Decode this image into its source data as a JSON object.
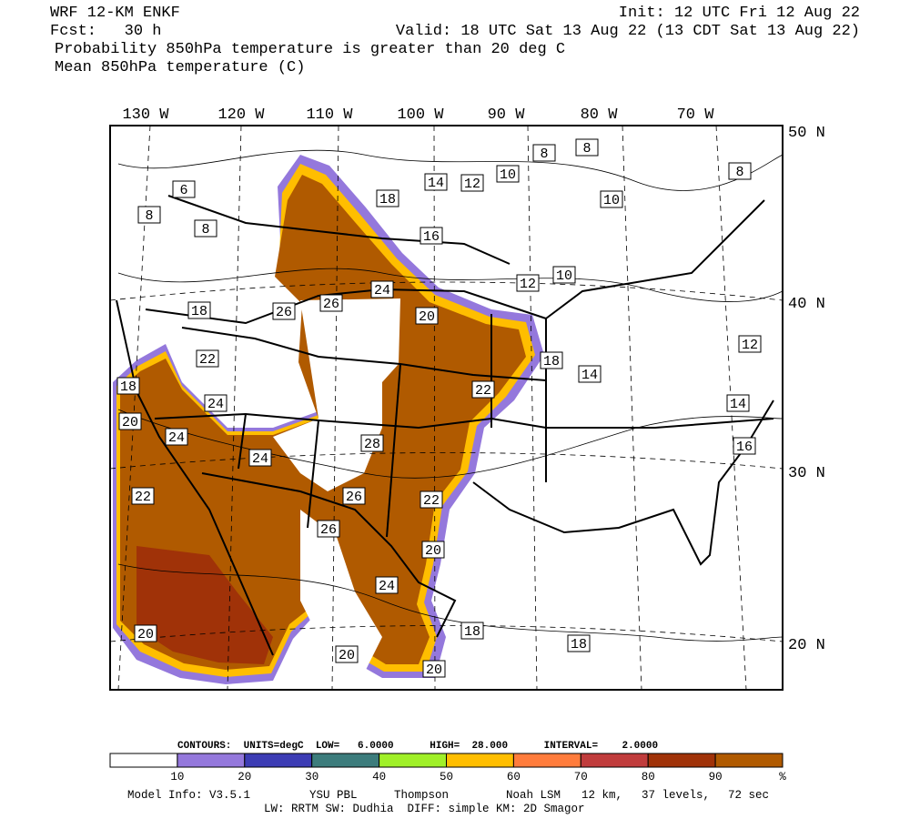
{
  "header": {
    "model": "WRF 12-KM ENKF",
    "forecast": "Fcst:   30 h",
    "init": "Init: 12 UTC Fri 12 Aug 22",
    "valid": "Valid: 18 UTC Sat 13 Aug 22 (13 CDT Sat 13 Aug 22)",
    "field1": "Probability 850hPa temperature is greater than 20 deg C",
    "field2": "Mean 850hPa temperature (C)"
  },
  "longitude_labels": [
    "130 W",
    "120 W",
    "110 W",
    "100 W",
    "90 W",
    "80 W",
    "70 W"
  ],
  "latitude_labels": [
    "50 N",
    "40 N",
    "30 N",
    "20 N"
  ],
  "contour_labels": [
    8,
    8,
    10,
    12,
    14,
    10,
    8,
    6,
    8,
    8,
    18,
    16,
    12,
    10,
    24,
    26,
    26,
    18,
    20,
    22,
    18,
    14,
    12,
    18,
    20,
    22,
    24,
    14,
    24,
    28,
    16,
    24,
    22,
    26,
    22,
    26,
    20,
    24,
    20,
    18,
    18,
    20,
    20
  ],
  "colorbar": {
    "colors": [
      "#ffffff",
      "#9478dc",
      "#3c3cb4",
      "#3c7c7c",
      "#a0f028",
      "#ffbe00",
      "#ff7c3c",
      "#c03c3c",
      "#a03208",
      "#b05a00"
    ],
    "labels": [
      10,
      20,
      30,
      40,
      50,
      60,
      70,
      80,
      90
    ],
    "unit": "%"
  },
  "footer": {
    "contours": "CONTOURS:  UNITS=degC  LOW=   6.0000      HIGH=  28.000      INTERVAL=    2.0000",
    "model_info": "Model Info: V3.5.1",
    "pbl": "YSU PBL",
    "micro": "Thompson",
    "lsm": "Noah LSM",
    "res": "12 km,",
    "levels": "37 levels,",
    "step": "72 sec",
    "physics": "LW: RRTM SW: Dudhia  DIFF: simple KM: 2D Smagor"
  }
}
